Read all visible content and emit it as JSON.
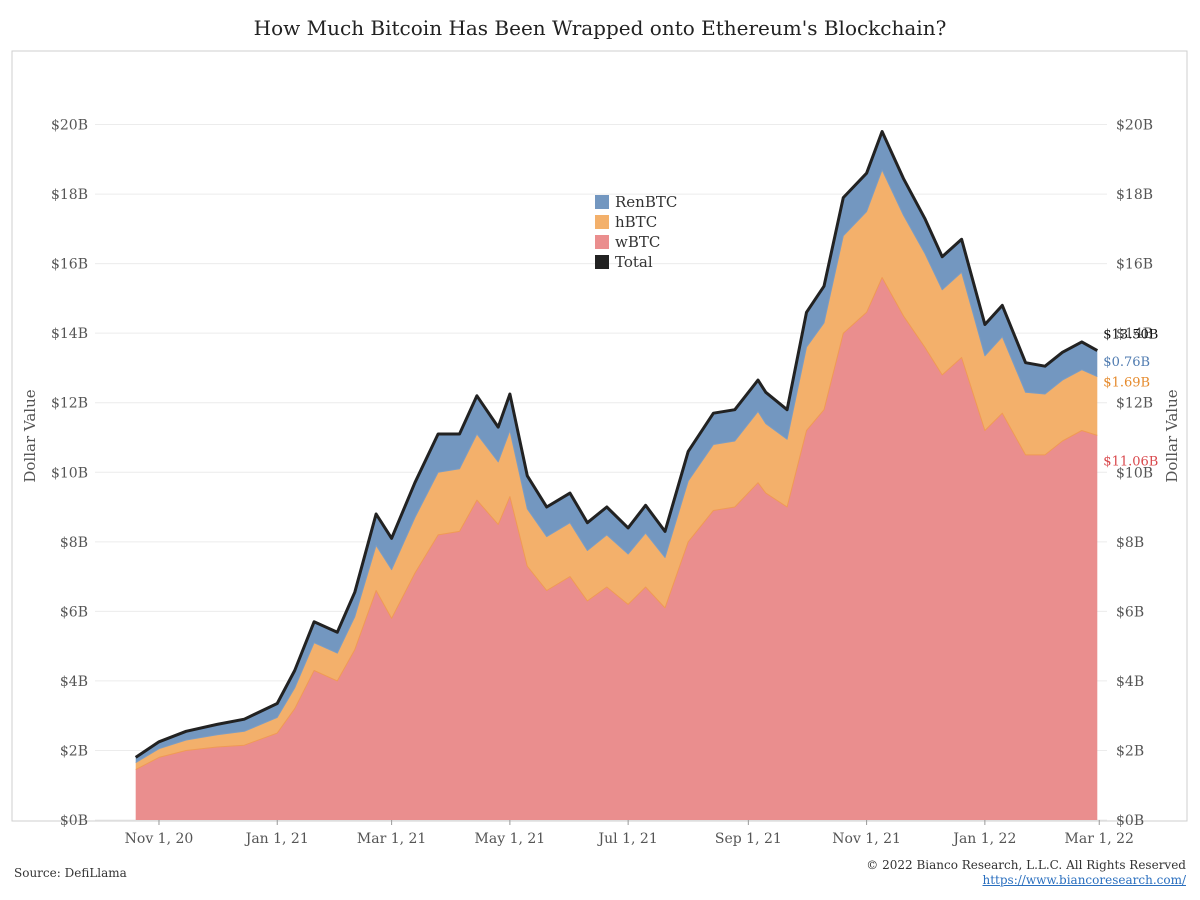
{
  "title": "How Much Bitcoin Has Been Wrapped onto Ethereum's Blockchain?",
  "footer": {
    "source": "Source: DefiLlama",
    "copyright": "© 2022 Bianco Research, L.L.C. All Rights Reserved",
    "website": "https://www.biancoresearch.com/"
  },
  "chart_data": {
    "type": "area",
    "title": "How Much Bitcoin Has Been Wrapped onto Ethereum's Blockchain?",
    "ylabel": "Dollar Value",
    "xlabel": "",
    "stacked": true,
    "ylim": [
      0,
      22
    ],
    "y_unit": "billions USD",
    "y_ticks": [
      0,
      2,
      4,
      6,
      8,
      10,
      12,
      14,
      16,
      18,
      20
    ],
    "y_tick_labels": [
      "$0B",
      "$2B",
      "$4B",
      "$6B",
      "$8B",
      "$10B",
      "$12B",
      "$14B",
      "$16B",
      "$18B",
      "$20B"
    ],
    "x_range": [
      "2020-09-29",
      "2022-03-05"
    ],
    "x_ticks": [
      "2020-11-01",
      "2021-01-01",
      "2021-03-01",
      "2021-05-01",
      "2021-07-01",
      "2021-09-01",
      "2021-11-01",
      "2022-01-01",
      "2022-03-01"
    ],
    "x_tick_labels": [
      "Nov 1, 20",
      "Jan 1, 21",
      "Mar 1, 21",
      "May 1, 21",
      "Jul 1, 21",
      "Sep 1, 21",
      "Nov 1, 21",
      "Jan 1, 22",
      "Mar 1, 22"
    ],
    "grid": true,
    "dual_y_axis": true,
    "legend_position": "center-top",
    "legend": [
      {
        "name": "RenBTC",
        "color": "#7397c0"
      },
      {
        "name": "hBTC",
        "color": "#f3b06b"
      },
      {
        "name": "wBTC",
        "color": "#ea8e8e"
      },
      {
        "name": "Total",
        "color": "#222222"
      }
    ],
    "end_labels": [
      {
        "series": "Total",
        "text": "$13.50B",
        "color": "#111111"
      },
      {
        "series": "RenBTC",
        "text": "$0.76B",
        "color": "#4f7bb0"
      },
      {
        "series": "hBTC",
        "text": "$1.69B",
        "color": "#e58a2c"
      },
      {
        "series": "wBTC",
        "text": "$11.06B",
        "color": "#d9484c"
      }
    ],
    "x": [
      "2020-10-20",
      "2020-11-01",
      "2020-11-15",
      "2020-12-01",
      "2020-12-15",
      "2021-01-01",
      "2021-01-10",
      "2021-01-20",
      "2021-02-01",
      "2021-02-10",
      "2021-02-21",
      "2021-03-01",
      "2021-03-13",
      "2021-03-25",
      "2021-04-05",
      "2021-04-14",
      "2021-04-25",
      "2021-05-01",
      "2021-05-10",
      "2021-05-20",
      "2021-06-01",
      "2021-06-10",
      "2021-06-20",
      "2021-07-01",
      "2021-07-10",
      "2021-07-20",
      "2021-08-01",
      "2021-08-14",
      "2021-08-25",
      "2021-09-06",
      "2021-09-10",
      "2021-09-21",
      "2021-10-01",
      "2021-10-10",
      "2021-10-20",
      "2021-11-01",
      "2021-11-09",
      "2021-11-20",
      "2021-12-01",
      "2021-12-10",
      "2021-12-20",
      "2022-01-01",
      "2022-01-10",
      "2022-01-22",
      "2022-02-01",
      "2022-02-10",
      "2022-02-20",
      "2022-02-28"
    ],
    "series": [
      {
        "name": "wBTC",
        "values": [
          1.45,
          1.8,
          2.0,
          2.1,
          2.15,
          2.5,
          3.2,
          4.3,
          4.0,
          4.9,
          6.6,
          5.8,
          7.1,
          8.2,
          8.3,
          9.2,
          8.5,
          9.3,
          7.3,
          6.6,
          7.0,
          6.3,
          6.7,
          6.2,
          6.7,
          6.1,
          8.0,
          8.9,
          9.0,
          9.7,
          9.4,
          9.0,
          11.2,
          11.8,
          14.0,
          14.6,
          15.6,
          14.5,
          13.6,
          12.8,
          13.3,
          11.2,
          11.7,
          10.5,
          10.5,
          10.9,
          11.2,
          11.06
        ]
      },
      {
        "name": "hBTC",
        "values": [
          0.2,
          0.25,
          0.3,
          0.35,
          0.4,
          0.45,
          0.6,
          0.8,
          0.8,
          0.95,
          1.3,
          1.4,
          1.6,
          1.8,
          1.8,
          1.9,
          1.8,
          1.9,
          1.65,
          1.55,
          1.55,
          1.45,
          1.5,
          1.45,
          1.55,
          1.45,
          1.75,
          1.9,
          1.9,
          2.05,
          2.0,
          1.95,
          2.4,
          2.5,
          2.8,
          2.9,
          3.1,
          2.9,
          2.7,
          2.45,
          2.45,
          2.15,
          2.2,
          1.8,
          1.75,
          1.75,
          1.75,
          1.69
        ]
      },
      {
        "name": "RenBTC",
        "values": [
          0.15,
          0.2,
          0.25,
          0.3,
          0.35,
          0.4,
          0.5,
          0.6,
          0.6,
          0.7,
          0.9,
          0.9,
          1.0,
          1.1,
          1.0,
          1.1,
          1.0,
          1.05,
          0.95,
          0.85,
          0.85,
          0.8,
          0.8,
          0.75,
          0.8,
          0.75,
          0.85,
          0.9,
          0.9,
          0.9,
          0.9,
          0.85,
          1.0,
          1.05,
          1.1,
          1.1,
          1.1,
          1.05,
          1.0,
          0.95,
          0.95,
          0.9,
          0.9,
          0.85,
          0.8,
          0.8,
          0.8,
          0.76
        ]
      },
      {
        "name": "Total",
        "values": [
          1.8,
          2.25,
          2.55,
          2.75,
          2.9,
          3.35,
          4.3,
          5.7,
          5.4,
          6.55,
          8.8,
          8.1,
          9.7,
          11.1,
          11.1,
          12.2,
          11.3,
          12.25,
          9.9,
          9.0,
          9.4,
          8.55,
          9.0,
          8.4,
          9.05,
          8.3,
          10.6,
          11.7,
          11.8,
          12.65,
          12.3,
          11.8,
          14.6,
          15.35,
          17.9,
          18.6,
          19.8,
          18.45,
          17.3,
          16.2,
          16.7,
          14.25,
          14.8,
          13.15,
          13.05,
          13.45,
          13.75,
          13.5
        ]
      }
    ]
  }
}
